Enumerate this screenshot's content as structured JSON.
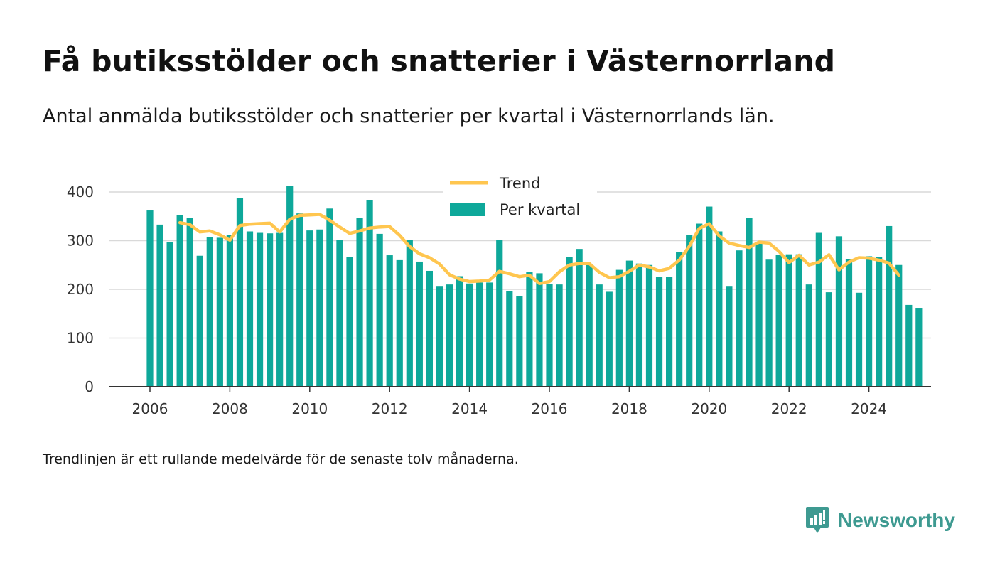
{
  "title": "Få butiksstölder och snatterier i Västernorrland",
  "subtitle": "Antal anmälda butiksstölder och snatterier per kvartal i Västernorrlands län.",
  "note": "Trendlinjen är ett rullande medelvärde för de senaste tolv månaderna.",
  "brand": "Newsworthy",
  "colors": {
    "bar": "#0ea89a",
    "trend": "#ffc64f",
    "grid": "#d9d9d9",
    "axis": "#333333",
    "brand": "#3e9a91"
  },
  "chart_data": {
    "type": "bar",
    "x_unit": "quarter",
    "start": "2006 Q1",
    "ylim": [
      0,
      400
    ],
    "yticks": [
      0,
      100,
      200,
      300,
      400
    ],
    "xticks": [
      2006,
      2008,
      2010,
      2012,
      2014,
      2016,
      2018,
      2020,
      2022,
      2024
    ],
    "grid": true,
    "legend_position": "top-center",
    "series": [
      {
        "name": "Per kvartal",
        "type": "bar",
        "values": [
          362,
          333,
          297,
          352,
          347,
          269,
          308,
          306,
          311,
          388,
          319,
          316,
          315,
          316,
          413,
          356,
          321,
          323,
          366,
          301,
          266,
          346,
          383,
          314,
          270,
          260,
          301,
          257,
          238,
          207,
          210,
          227,
          212,
          214,
          214,
          302,
          196,
          186,
          235,
          233,
          211,
          210,
          266,
          283,
          250,
          210,
          195,
          240,
          259,
          253,
          250,
          226,
          226,
          276,
          312,
          335,
          370,
          319,
          207,
          280,
          347,
          297,
          261,
          271,
          272,
          272,
          210,
          316,
          194,
          309,
          262,
          193,
          268,
          266,
          330,
          250,
          168,
          162
        ]
      },
      {
        "name": "Trend",
        "type": "line",
        "start": "2006 Q4",
        "values": [
          337,
          333,
          318,
          320,
          312,
          301,
          331,
          334,
          335,
          336,
          318,
          344,
          352,
          353,
          354,
          342,
          328,
          315,
          320,
          326,
          328,
          329,
          311,
          288,
          273,
          265,
          252,
          230,
          221,
          216,
          217,
          219,
          237,
          232,
          226,
          229,
          212,
          216,
          236,
          250,
          253,
          253,
          235,
          224,
          226,
          237,
          250,
          246,
          238,
          243,
          260,
          288,
          325,
          335,
          310,
          295,
          290,
          286,
          297,
          295,
          278,
          255,
          270,
          250,
          256,
          271,
          240,
          256,
          265,
          264,
          260,
          254,
          229
        ]
      }
    ]
  }
}
